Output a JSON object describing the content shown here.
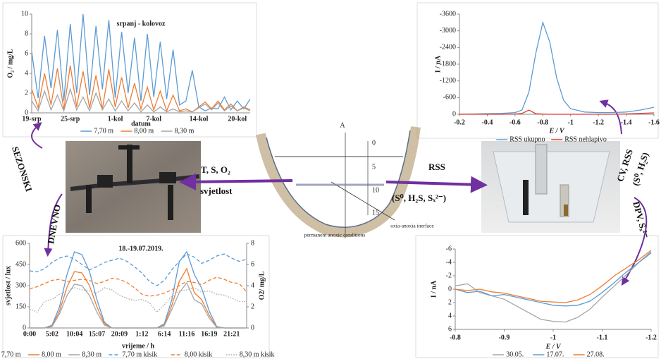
{
  "chart_data": [
    {
      "type": "line",
      "title": "srpanj - kolovoz",
      "y_label": "O₂ / mg/L",
      "x_label": "datum",
      "categories": [
        "19-srp",
        null,
        null,
        null,
        null,
        null,
        "25-srp",
        null,
        null,
        null,
        null,
        null,
        null,
        "1-kol",
        null,
        null,
        null,
        null,
        null,
        "7-kol",
        null,
        null,
        null,
        null,
        null,
        null,
        "14-kol",
        null,
        null,
        null,
        null,
        null,
        "20-kol",
        null,
        null
      ],
      "ylim": [
        0,
        10
      ],
      "yticks": [
        0,
        2,
        4,
        6,
        8,
        10
      ],
      "series": [
        {
          "name": "7,70 m",
          "color": "#5b9bd5",
          "values": [
            6.2,
            1.5,
            7.8,
            2.5,
            8.4,
            1.2,
            9,
            2,
            10,
            1.8,
            8.8,
            2.4,
            9.4,
            1.5,
            8.2,
            2,
            7.6,
            1.2,
            8,
            1.6,
            7.2,
            1.4,
            6.4,
            0.8,
            1.2,
            4.3,
            0.6,
            0.2,
            0.5,
            0.4,
            1.6,
            0.3,
            1.2,
            0.4,
            1.4
          ]
        },
        {
          "name": "8,00 m",
          "color": "#ed7d31",
          "values": [
            2.4,
            0.5,
            4,
            0.8,
            4.5,
            0.3,
            4.8,
            0.6,
            4.2,
            0.5,
            3.8,
            0.4,
            4.4,
            0.6,
            3.6,
            0.5,
            3,
            0.4,
            2.6,
            0.3,
            2.2,
            0.2,
            1.8,
            0.2,
            0.4,
            0.1,
            0.6,
            1.1,
            0.4,
            1.2,
            0.3,
            0.9,
            0.2,
            0.6,
            0.3
          ]
        },
        {
          "name": "8,30 m",
          "color": "#a5a5a5",
          "values": [
            1.2,
            0.2,
            2.2,
            0.3,
            1.8,
            0.2,
            2.4,
            0.3,
            1.6,
            0.2,
            2,
            0.3,
            1.4,
            0.2,
            1.2,
            0.2,
            1,
            0.1,
            0.8,
            0.1,
            0.6,
            0.1,
            0.4,
            0.1,
            0.2,
            0.1,
            0.5,
            0.9,
            0.3,
            1,
            0.2,
            0.7,
            0.2,
            0.5,
            0.2
          ]
        }
      ]
    },
    {
      "type": "line",
      "y_label": "I / nA",
      "x_label": "E / V",
      "x": [
        -0.2,
        -0.3,
        -0.4,
        -0.5,
        -0.6,
        -0.65,
        -0.7,
        -0.75,
        -0.8,
        -0.85,
        -0.9,
        -0.95,
        -1,
        -1.1,
        -1.2,
        -1.3,
        -1.4,
        -1.5,
        -1.6
      ],
      "xlim": [
        -0.2,
        -1.6
      ],
      "xticks": [
        -0.2,
        -0.4,
        -0.6,
        -0.8,
        -1,
        -1.2,
        -1.4,
        -1.6
      ],
      "ylim": [
        0,
        -3600
      ],
      "yticks": [
        0,
        -600,
        -1200,
        -1800,
        -2400,
        -3000,
        -3600
      ],
      "series": [
        {
          "name": "RSS ukupno",
          "color": "#5b9bd5",
          "values": [
            0,
            -10,
            -20,
            -30,
            -60,
            -150,
            -800,
            -2200,
            -3300,
            -2600,
            -1300,
            -500,
            -200,
            -80,
            -60,
            -60,
            -80,
            -150,
            -250
          ]
        },
        {
          "name": "RSS nehlapivo",
          "color": "#e03c31",
          "values": [
            0,
            0,
            0,
            0,
            -10,
            -30,
            -150,
            -20,
            -5,
            0,
            0,
            0,
            0,
            0,
            0,
            0,
            -10,
            -30,
            -50
          ]
        }
      ]
    },
    {
      "type": "line",
      "title": "18.-19.07.2019.",
      "y_label": "svjetlost / lux",
      "y2_label": "O2/ mg/L",
      "x_label": "vrijeme / h",
      "categories": [
        "0:00",
        null,
        null,
        "5:02",
        null,
        null,
        "10:04",
        null,
        null,
        "15:07",
        null,
        null,
        "20:09",
        null,
        null,
        "1:12",
        null,
        null,
        "6:14",
        null,
        null,
        "11:16",
        null,
        null,
        "16:19",
        null,
        null,
        "21:21",
        null,
        null
      ],
      "ylim": [
        0,
        600
      ],
      "yticks": [
        0,
        150,
        300,
        450,
        600
      ],
      "y2lim": [
        0,
        8
      ],
      "y2ticks": [
        0,
        2,
        4,
        6,
        8
      ],
      "series": [
        {
          "name": "7,70 m",
          "color": "#5b9bd5",
          "values": [
            0,
            0,
            0,
            20,
            150,
            380,
            540,
            520,
            400,
            200,
            40,
            0,
            0,
            0,
            0,
            0,
            0,
            0,
            30,
            200,
            470,
            540,
            380,
            280,
            120,
            10,
            0,
            0,
            0,
            0
          ]
        },
        {
          "name": "8,00 m",
          "color": "#ed7d31",
          "values": [
            0,
            0,
            0,
            15,
            120,
            290,
            400,
            390,
            300,
            150,
            30,
            0,
            0,
            0,
            0,
            0,
            0,
            0,
            20,
            160,
            330,
            420,
            250,
            200,
            90,
            5,
            0,
            0,
            0,
            0
          ]
        },
        {
          "name": "8,30 m",
          "color": "#a5a5a5",
          "values": [
            0,
            0,
            0,
            10,
            100,
            230,
            310,
            300,
            230,
            110,
            20,
            0,
            0,
            0,
            0,
            0,
            0,
            0,
            15,
            130,
            250,
            320,
            200,
            170,
            70,
            5,
            0,
            0,
            0,
            0
          ]
        },
        {
          "name": "7,70 m kisik",
          "color": "#5b9bd5",
          "axis": "y2",
          "dash": "dashed",
          "values": [
            5.4,
            5.3,
            5.6,
            6.2,
            6.6,
            6.8,
            6.5,
            6,
            5.5,
            5.8,
            6.2,
            6.4,
            6.6,
            6.3,
            5.8,
            5.2,
            4.4,
            4,
            4.5,
            5.5,
            6.3,
            7,
            6.7,
            6.1,
            6.4,
            6.8,
            7,
            6.6,
            6.3,
            6.5
          ]
        },
        {
          "name": "8,00 kisik",
          "color": "#ed7d31",
          "axis": "y2",
          "dash": "dashed",
          "values": [
            3.7,
            3.9,
            4.2,
            4.5,
            4.6,
            4.4,
            4.5,
            4.6,
            4.5,
            4.2,
            4.4,
            4.7,
            4.6,
            4.3,
            3.8,
            3.2,
            3,
            3.1,
            3.3,
            3.6,
            4,
            4.4,
            4.3,
            4.1,
            4.5,
            4.8,
            4.6,
            4.3,
            4.2,
            3.4
          ]
        },
        {
          "name": "8,30 m kisik",
          "color": "#a5a5a5",
          "axis": "y2",
          "dash": "dotted",
          "values": [
            1.8,
            1.5,
            2.5,
            2.7,
            3.2,
            3.5,
            3.8,
            3.6,
            3.5,
            3.3,
            3.8,
            3.6,
            3.1,
            2.8,
            2.6,
            2.7,
            2.4,
            1.5,
            2.2,
            3,
            3.5,
            3.6,
            3.8,
            3.4,
            3.5,
            3.2,
            3.1,
            2.8,
            2.5,
            2.5
          ]
        }
      ]
    },
    {
      "type": "line",
      "y_label": "I / nA",
      "x_label": "E / V",
      "x": [
        -0.8,
        -0.825,
        -0.85,
        -0.875,
        -0.9,
        -0.925,
        -0.95,
        -0.975,
        -1,
        -1.025,
        -1.05,
        -1.075,
        -1.1,
        -1.125,
        -1.15,
        -1.175,
        -1.2
      ],
      "xlim": [
        -0.8,
        -1.2
      ],
      "xticks": [
        -0.8,
        -0.9,
        -1,
        -1.1,
        -1.2
      ],
      "ylim": [
        6,
        -6
      ],
      "yticks": [
        6,
        4,
        2,
        0,
        -2,
        -4,
        -6
      ],
      "series": [
        {
          "name": "30.05.",
          "color": "#a5a5a5",
          "values": [
            -0.5,
            -0.8,
            0.5,
            1,
            1.5,
            2.5,
            3.5,
            4.5,
            4.8,
            4.9,
            4.2,
            3,
            1.2,
            -0.5,
            -2.2,
            -4,
            -5.6
          ]
        },
        {
          "name": "17.07.",
          "color": "#5b9bd5",
          "values": [
            0,
            0.5,
            0.3,
            1,
            0.8,
            1.2,
            1.6,
            2,
            2.4,
            2.5,
            2.4,
            1.8,
            0.5,
            -1,
            -2.6,
            -4,
            -5.4
          ]
        },
        {
          "name": "27.08.",
          "color": "#ed7d31",
          "values": [
            0,
            0.2,
            0,
            0.4,
            0.6,
            1,
            1.4,
            1.8,
            1.9,
            2,
            1.6,
            0.8,
            -0.5,
            -2,
            -3.2,
            -4.4,
            -5.8
          ]
        }
      ]
    }
  ],
  "labels": {
    "measured": "T, S, O₂",
    "light": "svjetlost",
    "rss": "RSS",
    "species": "(S⁰, H₂S, Sₓ²⁻)",
    "seasonal": "SEZONSKI",
    "daily": "DNEVNO",
    "cv": "CV, RSS",
    "cv_species": "(S⁰, H₂S)",
    "dpv": "DPV, Sₓ²⁻"
  },
  "diagram": {
    "marker": "A",
    "depth_ticks": [
      0,
      5,
      10,
      15
    ],
    "bottom_label": "permanent anoxic conditions",
    "interface_label": "oxia-anoxia inerface"
  }
}
